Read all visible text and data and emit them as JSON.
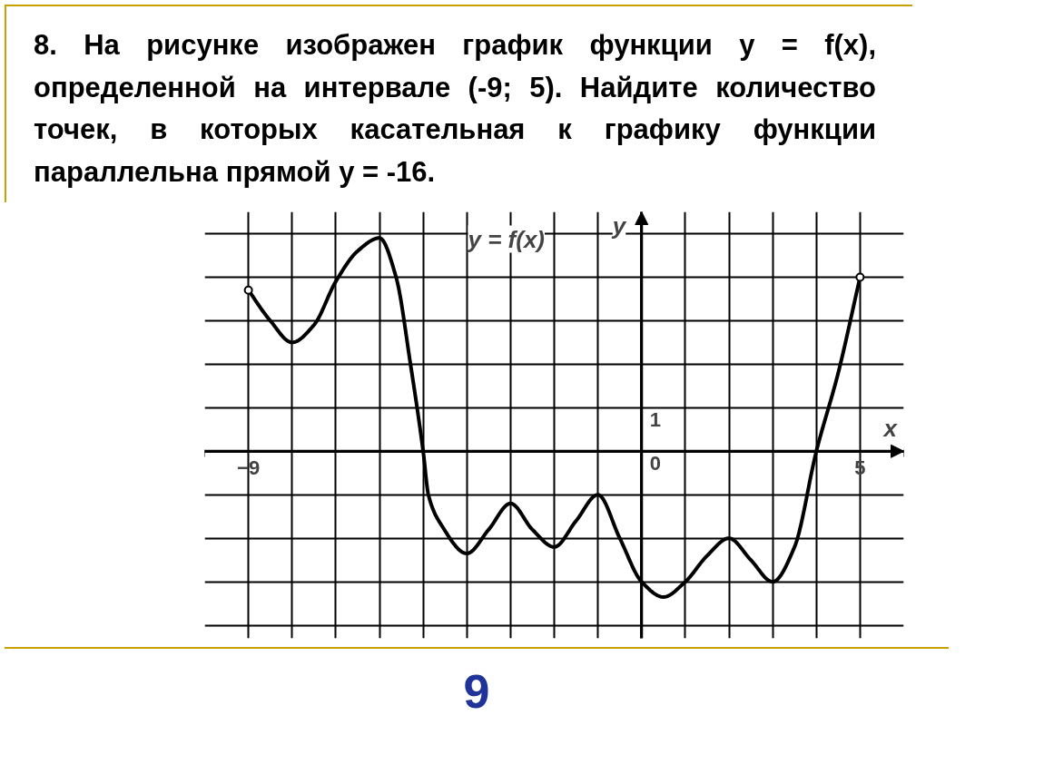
{
  "chart_data": {
    "type": "line",
    "title": "8.  На рисунке изображен график функции y = f(x), определенной на интервале (-9; 5). Найдите количество точек, в которых касательная к графику функции параллельна прямой y = -16.",
    "xlabel": "x",
    "ylabel": "y",
    "x": [
      -9,
      -8.5,
      -8,
      -7.5,
      -7,
      -6.5,
      -6,
      -5.62,
      -5.29,
      -5,
      -4.88,
      -4.58,
      -4,
      -3.5,
      -3,
      -2.5,
      -2,
      -1.5,
      -1,
      -0.5,
      0,
      0.5,
      1,
      1.5,
      2,
      2.5,
      3,
      3.5,
      4,
      4.5,
      5
    ],
    "series": [
      {
        "color": "#000000",
        "values": [
          3.7,
          3.0,
          2.5,
          2.9,
          3.9,
          4.6,
          4.9,
          4.0,
          2.0,
          0,
          -1.0,
          -1.7,
          -2.35,
          -1.8,
          -1.2,
          -1.8,
          -2.2,
          -1.6,
          -1.0,
          -2.0,
          -3.0,
          -3.35,
          -3.0,
          -2.4,
          -2.0,
          -2.5,
          -3.0,
          -2.2,
          0,
          1.8,
          4.0
        ]
      },
      {
        "type": "scatter",
        "marker": "circle",
        "color": "#000000",
        "x": [
          -9,
          5
        ],
        "values": [
          3.7,
          4.0
        ]
      }
    ],
    "xlim": [
      -10,
      6
    ],
    "ylim": [
      -4.3,
      5.5
    ],
    "xticks": [
      {
        "value": -10,
        "label": null
      },
      {
        "value": -9,
        "label": "−9"
      },
      {
        "value": -8,
        "label": null
      },
      {
        "value": -7,
        "label": null
      },
      {
        "value": -6,
        "label": null
      },
      {
        "value": -5,
        "label": null
      },
      {
        "value": -4,
        "label": null
      },
      {
        "value": -3,
        "label": null
      },
      {
        "value": -2,
        "label": null
      },
      {
        "value": -1,
        "label": null
      },
      {
        "value": 0,
        "label": null
      },
      {
        "value": 1,
        "label": null
      },
      {
        "value": 2,
        "label": null
      },
      {
        "value": 3,
        "label": null
      },
      {
        "value": 4,
        "label": null
      },
      5,
      {
        "value": 6,
        "label": null
      }
    ],
    "yticks": [
      {
        "value": -4,
        "label": null
      },
      {
        "value": -3,
        "label": null
      },
      {
        "value": -2,
        "label": null
      },
      {
        "value": -1,
        "label": null
      },
      0,
      1,
      {
        "value": 2,
        "label": null
      },
      {
        "value": 3,
        "label": null
      },
      {
        "value": 4,
        "label": null
      },
      {
        "value": 5,
        "label": null
      }
    ],
    "grid": true,
    "line_style": "solid",
    "annotations": [
      "y = f(x)",
      "9"
    ]
  }
}
